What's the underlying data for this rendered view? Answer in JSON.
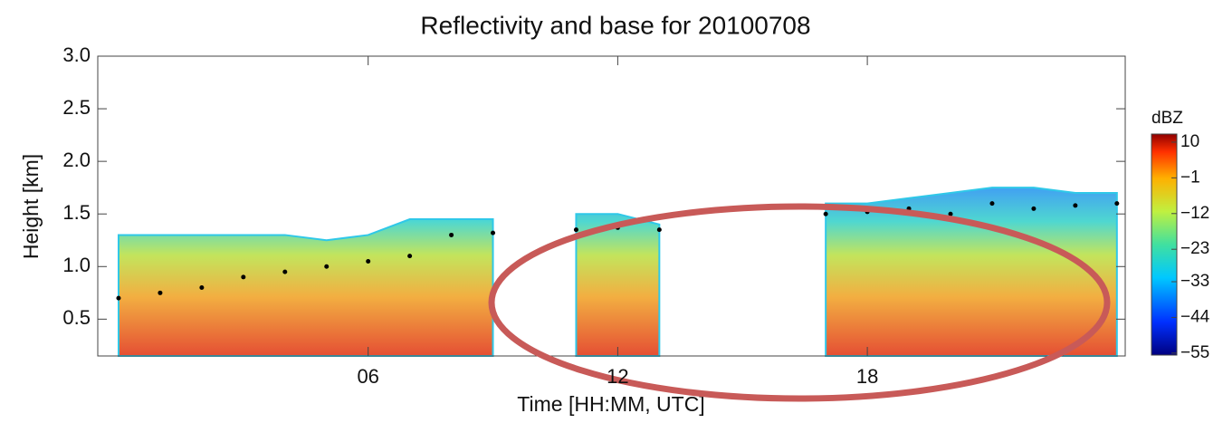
{
  "chart_data": {
    "type": "area",
    "title": "Reflectivity and base for 20100708",
    "x_label": "Time [HH:MM, UTC]",
    "y_label": "Height [km]",
    "colorbar_label": "dBZ",
    "x": [
      0,
      1,
      2,
      3,
      4,
      5,
      6,
      7,
      8,
      9,
      10,
      11,
      12,
      13,
      14,
      15,
      16,
      17,
      18,
      19,
      20,
      21,
      22,
      23,
      24
    ],
    "series": [
      {
        "color": "#2fc8e8",
        "values": [
          1.3,
          1.3,
          1.3,
          1.3,
          1.3,
          1.25,
          1.3,
          1.45,
          1.45,
          1.45,
          null,
          1.5,
          1.5,
          1.4,
          null,
          null,
          null,
          1.6,
          1.6,
          1.65,
          1.7,
          1.75,
          1.75,
          1.7,
          1.7
        ]
      },
      {
        "color": "#000000",
        "values": [
          0.7,
          0.75,
          0.8,
          0.9,
          0.95,
          1.0,
          1.05,
          1.1,
          1.3,
          1.32,
          null,
          1.35,
          1.37,
          1.35,
          null,
          null,
          null,
          1.5,
          1.52,
          1.55,
          1.5,
          1.6,
          1.55,
          1.58,
          1.6
        ]
      }
    ],
    "xlim": [
      -0.5,
      24.2
    ],
    "xticks": [
      {
        "value": 6,
        "label": "06"
      },
      {
        "value": 12,
        "label": "12"
      },
      {
        "value": 18,
        "label": "18"
      }
    ],
    "ylim": [
      0.15,
      3.0
    ],
    "yticks": [
      0.5,
      {
        "value": 1,
        "label": "1.0"
      },
      1.5,
      {
        "value": 2,
        "label": "2.0"
      },
      2.5,
      {
        "value": 3,
        "label": "3.0"
      }
    ],
    "clim": [
      -55.6,
      12.5
    ],
    "cticks": [
      10,
      {
        "value": -1,
        "label": "−1"
      },
      {
        "value": -12,
        "label": "−12"
      },
      {
        "value": -23,
        "label": "−23"
      },
      {
        "value": -33,
        "label": "−33"
      },
      {
        "value": -44,
        "label": "−44"
      },
      {
        "value": -55,
        "label": "−55"
      }
    ]
  }
}
